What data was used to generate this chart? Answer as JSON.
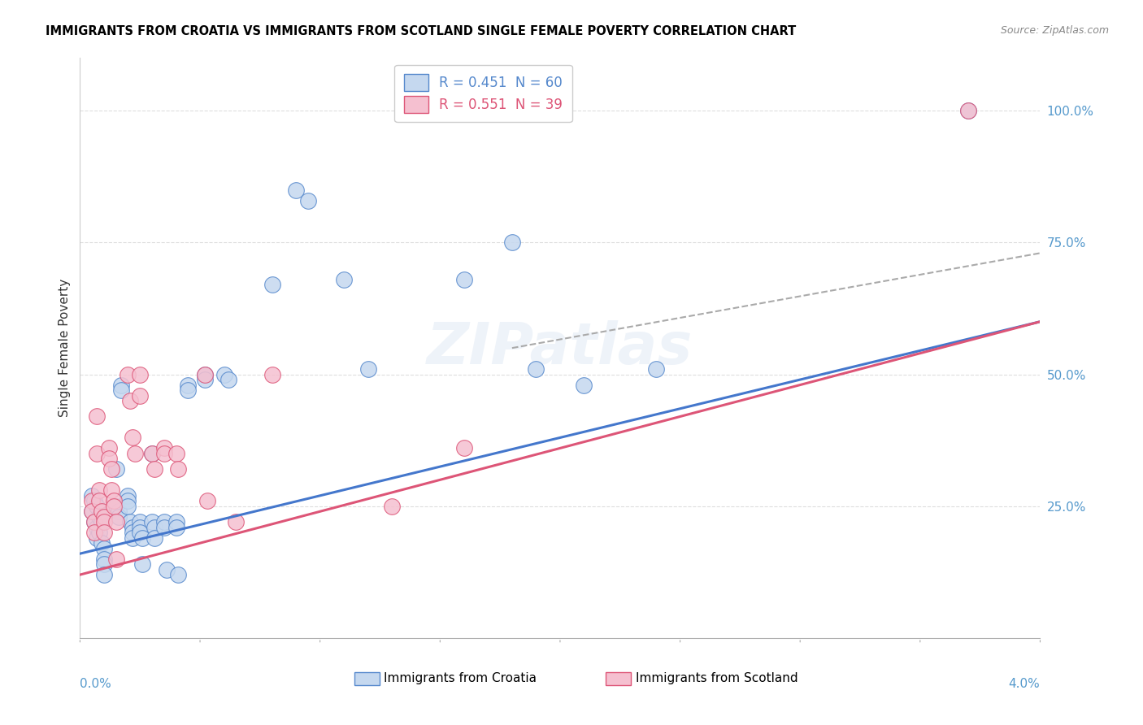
{
  "title": "IMMIGRANTS FROM CROATIA VS IMMIGRANTS FROM SCOTLAND SINGLE FEMALE POVERTY CORRELATION CHART",
  "source": "Source: ZipAtlas.com",
  "ylabel": "Single Female Poverty",
  "xlim": [
    0.0,
    0.04
  ],
  "ylim": [
    -0.08,
    1.1
  ],
  "plot_ylim": [
    0.0,
    1.1
  ],
  "right_ytick_vals": [
    0.25,
    0.5,
    0.75,
    1.0
  ],
  "right_ytick_labels": [
    "25.0%",
    "50.0%",
    "75.0%",
    "100.0%"
  ],
  "xtick_label_left": "0.0%",
  "xtick_label_right": "4.0%",
  "croatia_face": "#c5d8ef",
  "croatia_edge": "#5588cc",
  "scotland_face": "#f5c0d0",
  "scotland_edge": "#dd5577",
  "trendline_croatia": "#4477cc",
  "trendline_scotland": "#dd5577",
  "trendline_dashed": "#aaaaaa",
  "legend_croatia_label": "R = 0.451  N = 60",
  "legend_scotland_label": "R = 0.551  N = 39",
  "bottom_legend_croatia": "Immigrants from Croatia",
  "bottom_legend_scotland": "Immigrants from Scotland",
  "watermark": "ZIPatlas",
  "grid_color": "#dddddd",
  "croatia_pts": [
    [
      0.0005,
      0.27
    ],
    [
      0.0005,
      0.24
    ],
    [
      0.0006,
      0.26
    ],
    [
      0.0006,
      0.22
    ],
    [
      0.0007,
      0.25
    ],
    [
      0.0007,
      0.21
    ],
    [
      0.0007,
      0.19
    ],
    [
      0.0008,
      0.23
    ],
    [
      0.0008,
      0.2
    ],
    [
      0.0009,
      0.22
    ],
    [
      0.0009,
      0.18
    ],
    [
      0.001,
      0.17
    ],
    [
      0.001,
      0.15
    ],
    [
      0.001,
      0.14
    ],
    [
      0.001,
      0.12
    ],
    [
      0.0015,
      0.32
    ],
    [
      0.0015,
      0.25
    ],
    [
      0.0016,
      0.24
    ],
    [
      0.0016,
      0.23
    ],
    [
      0.0017,
      0.48
    ],
    [
      0.0017,
      0.47
    ],
    [
      0.002,
      0.27
    ],
    [
      0.002,
      0.26
    ],
    [
      0.002,
      0.25
    ],
    [
      0.0021,
      0.22
    ],
    [
      0.0022,
      0.21
    ],
    [
      0.0022,
      0.2
    ],
    [
      0.0022,
      0.19
    ],
    [
      0.0025,
      0.22
    ],
    [
      0.0025,
      0.21
    ],
    [
      0.0025,
      0.2
    ],
    [
      0.0026,
      0.19
    ],
    [
      0.0026,
      0.14
    ],
    [
      0.003,
      0.35
    ],
    [
      0.003,
      0.22
    ],
    [
      0.0031,
      0.21
    ],
    [
      0.0031,
      0.19
    ],
    [
      0.0035,
      0.22
    ],
    [
      0.0035,
      0.21
    ],
    [
      0.0036,
      0.13
    ],
    [
      0.004,
      0.22
    ],
    [
      0.004,
      0.21
    ],
    [
      0.0041,
      0.12
    ],
    [
      0.0045,
      0.48
    ],
    [
      0.0045,
      0.47
    ],
    [
      0.0052,
      0.5
    ],
    [
      0.0052,
      0.49
    ],
    [
      0.006,
      0.5
    ],
    [
      0.0062,
      0.49
    ],
    [
      0.008,
      0.67
    ],
    [
      0.009,
      0.85
    ],
    [
      0.0095,
      0.83
    ],
    [
      0.011,
      0.68
    ],
    [
      0.012,
      0.51
    ],
    [
      0.016,
      0.68
    ],
    [
      0.018,
      0.75
    ],
    [
      0.019,
      0.51
    ],
    [
      0.021,
      0.48
    ],
    [
      0.024,
      0.51
    ],
    [
      0.037,
      1.0
    ]
  ],
  "scotland_pts": [
    [
      0.0005,
      0.26
    ],
    [
      0.0005,
      0.24
    ],
    [
      0.0006,
      0.22
    ],
    [
      0.0006,
      0.2
    ],
    [
      0.0007,
      0.42
    ],
    [
      0.0007,
      0.35
    ],
    [
      0.0008,
      0.28
    ],
    [
      0.0008,
      0.26
    ],
    [
      0.0009,
      0.24
    ],
    [
      0.001,
      0.23
    ],
    [
      0.001,
      0.22
    ],
    [
      0.001,
      0.2
    ],
    [
      0.0012,
      0.36
    ],
    [
      0.0012,
      0.34
    ],
    [
      0.0013,
      0.32
    ],
    [
      0.0013,
      0.28
    ],
    [
      0.0014,
      0.26
    ],
    [
      0.0014,
      0.25
    ],
    [
      0.0015,
      0.22
    ],
    [
      0.0015,
      0.15
    ],
    [
      0.002,
      0.5
    ],
    [
      0.0021,
      0.45
    ],
    [
      0.0022,
      0.38
    ],
    [
      0.0023,
      0.35
    ],
    [
      0.0025,
      0.5
    ],
    [
      0.0025,
      0.46
    ],
    [
      0.003,
      0.35
    ],
    [
      0.0031,
      0.32
    ],
    [
      0.0035,
      0.36
    ],
    [
      0.0035,
      0.35
    ],
    [
      0.004,
      0.35
    ],
    [
      0.0041,
      0.32
    ],
    [
      0.0052,
      0.5
    ],
    [
      0.0053,
      0.26
    ],
    [
      0.0065,
      0.22
    ],
    [
      0.008,
      0.5
    ],
    [
      0.013,
      0.25
    ],
    [
      0.016,
      0.36
    ],
    [
      0.037,
      1.0
    ]
  ],
  "trendline_croatia_pts": [
    [
      0.0,
      0.16
    ],
    [
      0.04,
      0.6
    ]
  ],
  "trendline_scotland_pts": [
    [
      0.0,
      0.12
    ],
    [
      0.04,
      0.6
    ]
  ],
  "trendline_dashed_pts": [
    [
      0.018,
      0.55
    ],
    [
      0.04,
      0.73
    ]
  ]
}
